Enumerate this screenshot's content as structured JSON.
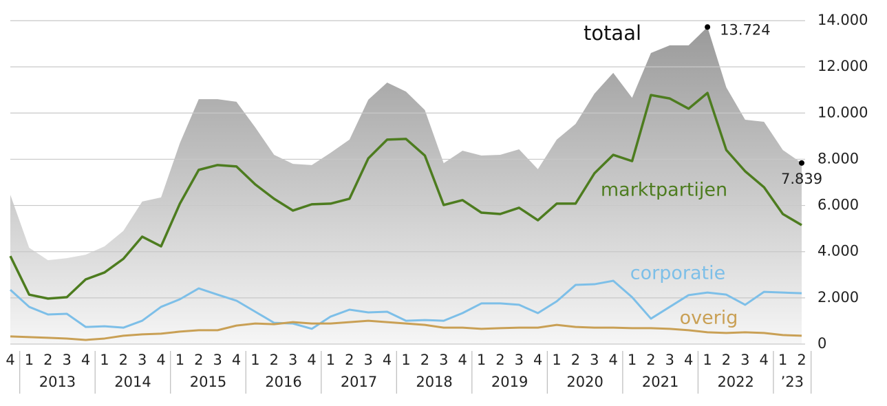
{
  "chart_data": {
    "type": "line",
    "categories": [
      "4",
      "1",
      "2",
      "3",
      "4",
      "1",
      "2",
      "3",
      "4",
      "1",
      "2",
      "3",
      "4",
      "1",
      "2",
      "3",
      "4",
      "1",
      "2",
      "3",
      "4",
      "1",
      "2",
      "3",
      "4",
      "1",
      "2",
      "3",
      "4",
      "1",
      "2",
      "3",
      "4",
      "1",
      "2",
      "3",
      "4",
      "1",
      "2",
      "3",
      "4",
      "1",
      "2"
    ],
    "year_labels": [
      "2013",
      "2014",
      "2015",
      "2016",
      "2017",
      "2018",
      "2019",
      "2020",
      "2021",
      "2022",
      "’23"
    ],
    "ylim": [
      0,
      14000
    ],
    "yticks": [
      0,
      {
        "value": 2000,
        "label": "2.000"
      },
      {
        "value": 4000,
        "label": "4.000"
      },
      {
        "value": 6000,
        "label": "6.000"
      },
      {
        "value": 8000,
        "label": "8.000"
      },
      {
        "value": 10000,
        "label": "10.000"
      },
      {
        "value": 12000,
        "label": "12.000"
      },
      {
        "value": 14000,
        "label": "14.000"
      }
    ],
    "grid": true,
    "series": [
      {
        "name": "totaal",
        "color": "#a6a6a6",
        "style": "area",
        "values": [
          6460,
          4170,
          3630,
          3720,
          3870,
          4230,
          4900,
          6170,
          6350,
          8700,
          10600,
          10600,
          10490,
          9380,
          8190,
          7800,
          7750,
          8280,
          8850,
          10580,
          11320,
          10930,
          10130,
          7830,
          8370,
          8160,
          8190,
          8430,
          7570,
          8850,
          9530,
          10840,
          11740,
          10660,
          12600,
          12930,
          12930,
          13724,
          11110,
          9710,
          9620,
          8400,
          7839
        ],
        "value_labels": [
          null,
          null,
          null,
          null,
          null,
          null,
          null,
          null,
          null,
          null,
          null,
          null,
          null,
          null,
          null,
          null,
          null,
          null,
          null,
          null,
          null,
          null,
          null,
          null,
          null,
          null,
          null,
          null,
          null,
          null,
          null,
          null,
          null,
          null,
          null,
          null,
          null,
          "13.724",
          null,
          null,
          null,
          null,
          "7.839"
        ]
      },
      {
        "name": "marktpartijen",
        "color": "#4d7c1f",
        "style": "line",
        "values": [
          3810,
          2140,
          1970,
          2030,
          2800,
          3100,
          3690,
          4650,
          4230,
          6080,
          7540,
          7750,
          7690,
          6910,
          6290,
          5780,
          6050,
          6080,
          6290,
          8040,
          8850,
          8880,
          8160,
          6020,
          6230,
          5690,
          5630,
          5900,
          5360,
          6080,
          6080,
          7390,
          8190,
          7920,
          10780,
          10630,
          10190,
          10870,
          8400,
          7480,
          6790,
          5630,
          5150
        ]
      },
      {
        "name": "corporatie",
        "color": "#7dbfe8",
        "style": "line",
        "values": [
          2350,
          1610,
          1280,
          1310,
          740,
          770,
          710,
          1010,
          1610,
          1940,
          2410,
          2140,
          1880,
          1400,
          920,
          890,
          660,
          1190,
          1490,
          1370,
          1400,
          1010,
          1040,
          1010,
          1340,
          1760,
          1760,
          1700,
          1340,
          1850,
          2560,
          2590,
          2740,
          2030,
          1100,
          1610,
          2120,
          2230,
          2140,
          1700,
          2260,
          2230,
          2200
        ]
      },
      {
        "name": "overig",
        "color": "#c9a055",
        "style": "line",
        "values": [
          330,
          300,
          270,
          240,
          180,
          240,
          360,
          420,
          450,
          540,
          600,
          600,
          800,
          890,
          860,
          950,
          890,
          890,
          950,
          1010,
          950,
          890,
          830,
          710,
          710,
          660,
          690,
          710,
          710,
          830,
          740,
          710,
          710,
          690,
          690,
          660,
          600,
          510,
          480,
          510,
          480,
          390,
          360
        ]
      }
    ]
  }
}
